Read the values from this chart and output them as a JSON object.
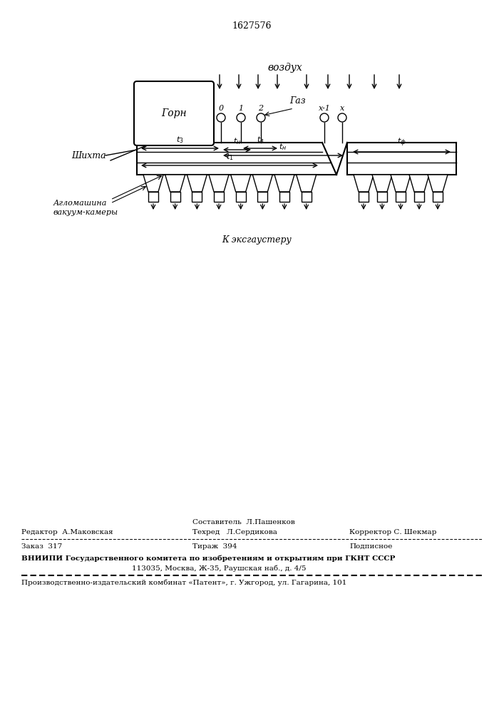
{
  "patent_number": "1627576",
  "bg_color": "#ffffff",
  "line_color": "#000000",
  "fig_width": 7.07,
  "fig_height": 10.0,
  "vozdukh": "воздух",
  "gorn": "Горн",
  "shikhta": "Шихта",
  "aglo_line1": "Агломашина",
  "aglo_line2": "вакуум-камеры",
  "gaz": "Газ",
  "ekshauster": "К эксгаустеру",
  "editor_line": "Редактор  А.Маковская",
  "sostavitel_line": "Составитель  Л.Пашенков",
  "tekhred_line": "Техред   Л.Сердикова",
  "korrektor_line": "Корректор С. Шекмар",
  "zakaz_line": "Заказ  317",
  "tirazh_line": "Тираж  394",
  "podpisnoe_line": "Подписное",
  "vniiipi_line1": "ВНИИПИ Государственного комитета по изобретениям и открытиям при ГКНТ СССР",
  "vniiipi_line2": "113035, Москва, Ж-35, Раушская наб., д. 4/5",
  "proizv_line": "Производственно-издательский комбинат «Патент», г. Ужгород, ул. Гагарина, 101"
}
